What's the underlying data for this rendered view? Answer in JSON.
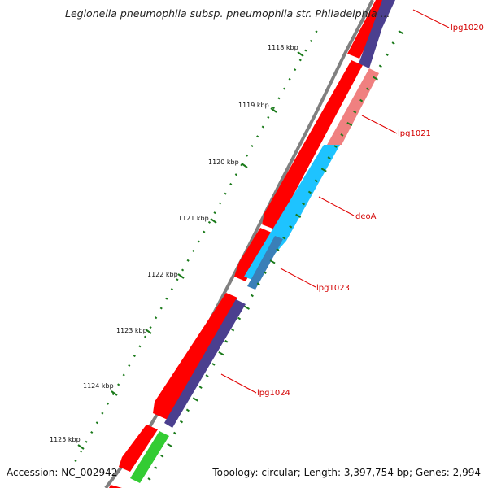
{
  "title": "Legionella pneumophila subsp. pneumophila str. Philadelphia ...",
  "footer": {
    "accession": "Accession: NC_002942",
    "stats": "Topology: circular; Length: 3,397,754 bp; Genes: 2,994"
  },
  "scale_ticks": [
    "1118 kbp",
    "1119 kbp",
    "1120 kbp",
    "1121 kbp",
    "1122 kbp",
    "1123 kbp",
    "1124 kbp",
    "1125 kbp"
  ],
  "genes": [
    {
      "label": "lpg1020"
    },
    {
      "label": "lpg1021"
    },
    {
      "label": "deoA"
    },
    {
      "label": "lpg1023"
    },
    {
      "label": "lpg1024"
    }
  ],
  "colors": {
    "forward_cds": "#ff0000",
    "reverse_cds": "#4b3f8f",
    "lpg1021": "#f08080",
    "deoA": "#1ec3ff",
    "lpg1023": "#3a7fb8",
    "other_gene": "#33cc33",
    "backbone": "#808080",
    "tick": "#1a7a1a",
    "label_line": "#e00000"
  }
}
